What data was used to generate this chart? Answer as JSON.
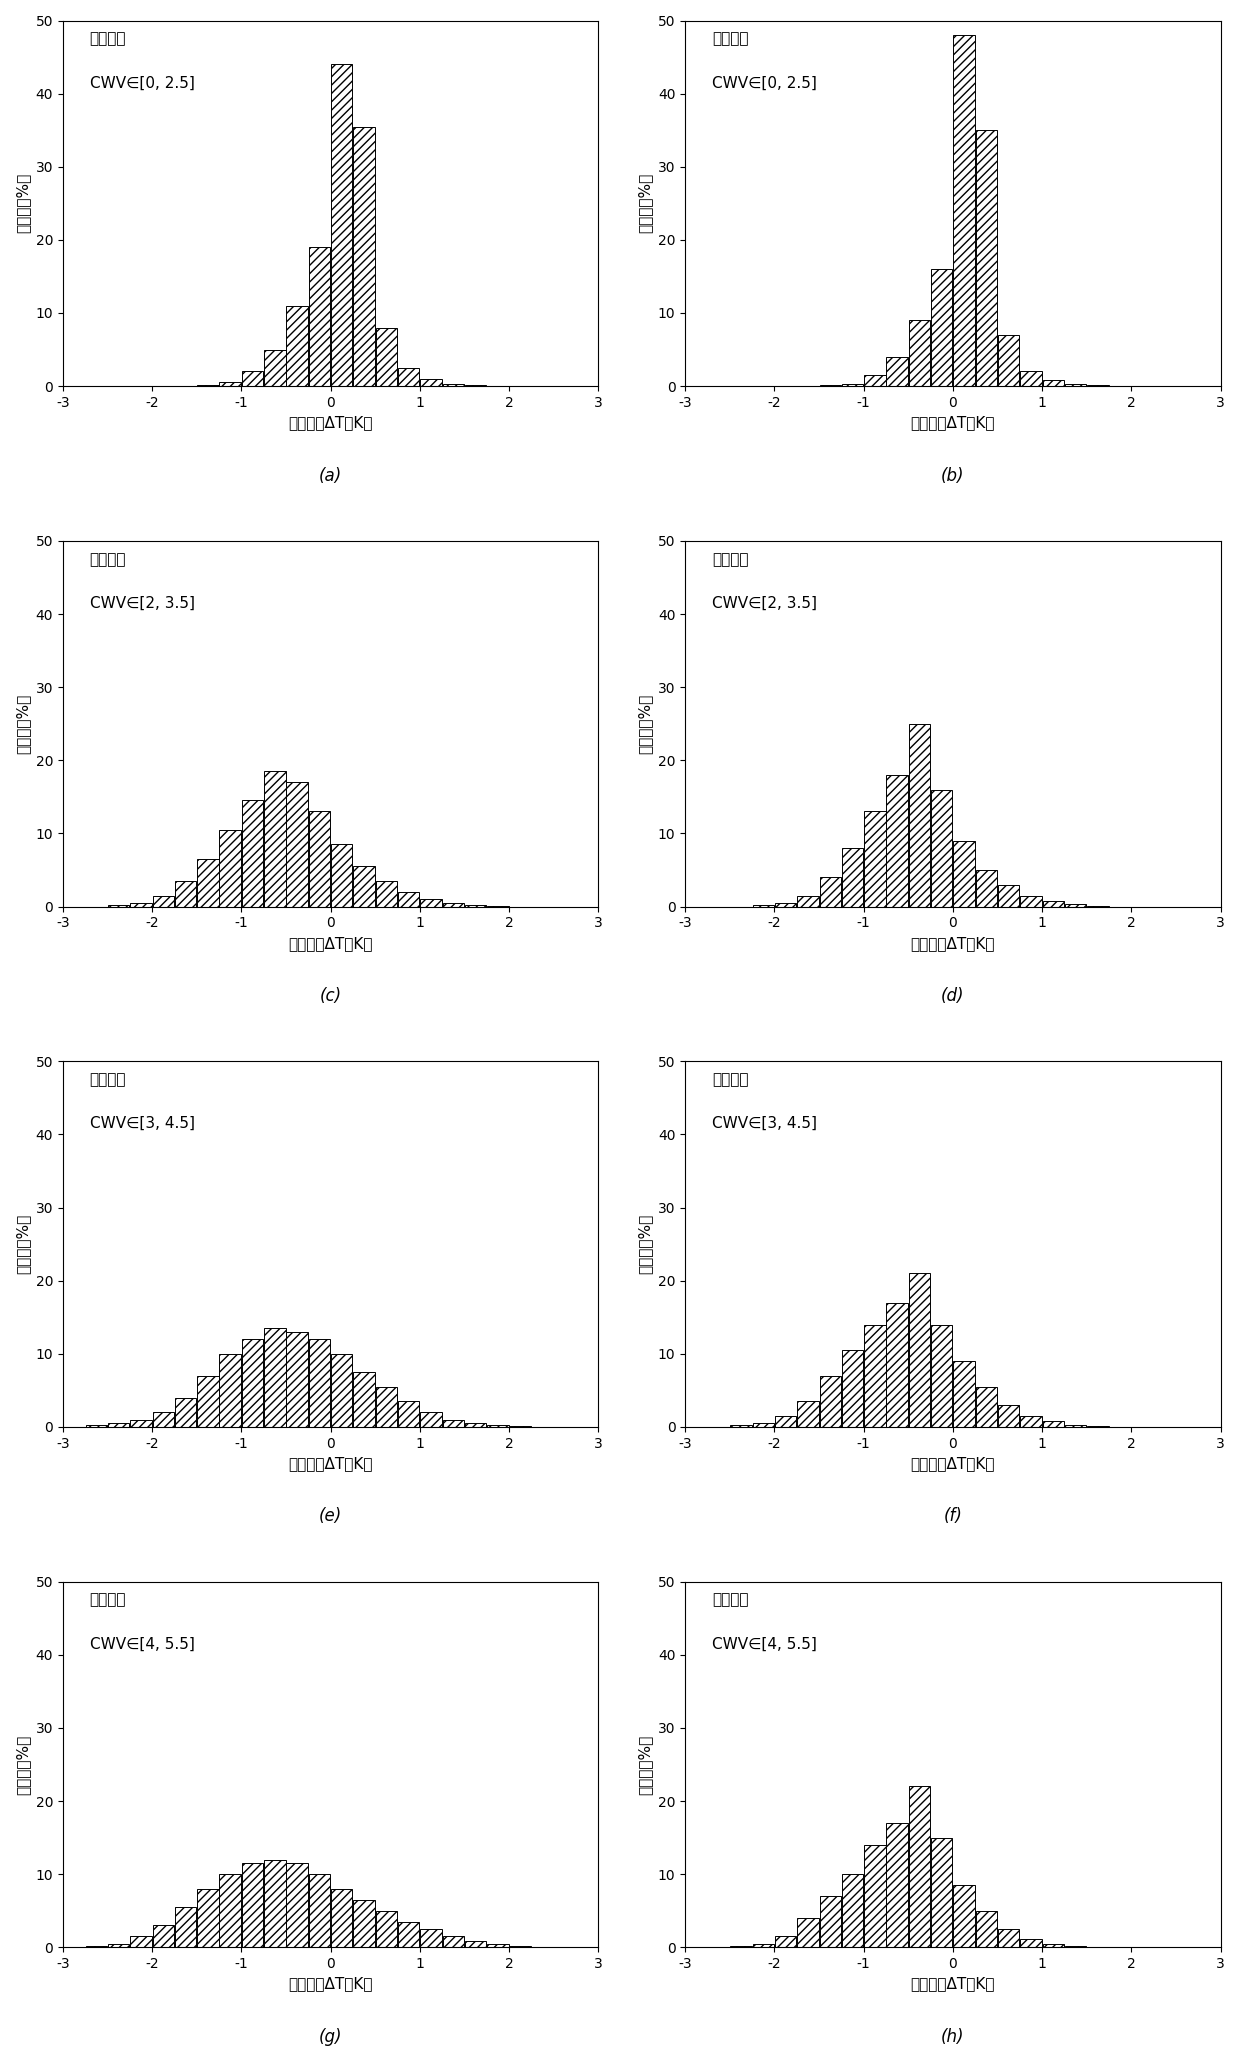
{
  "panels": [
    {
      "label": "(a)",
      "title_line1": "日间算法",
      "title_line2": "CWV∈[0, 2.5]",
      "values": [
        0,
        0,
        0,
        0,
        0,
        0,
        0.2,
        0.5,
        2.0,
        5.0,
        11.0,
        19.0,
        44.0,
        35.5,
        8.0,
        2.5,
        1.0,
        0.3,
        0.1,
        0,
        0,
        0,
        0,
        0
      ]
    },
    {
      "label": "(b)",
      "title_line1": "夜间算法",
      "title_line2": "CWV∈[0, 2.5]",
      "values": [
        0,
        0,
        0,
        0,
        0,
        0,
        0.1,
        0.3,
        1.5,
        4.0,
        9.0,
        16.0,
        48.0,
        35.0,
        7.0,
        2.0,
        0.8,
        0.3,
        0.1,
        0,
        0,
        0,
        0,
        0
      ]
    },
    {
      "label": "(c)",
      "title_line1": "日间算法",
      "title_line2": "CWV∈[2, 3.5]",
      "values": [
        0,
        0,
        0.2,
        0.5,
        1.5,
        3.5,
        6.5,
        10.5,
        14.5,
        18.5,
        17.0,
        13.0,
        8.5,
        5.5,
        3.5,
        2.0,
        1.0,
        0.5,
        0.2,
        0.1,
        0,
        0,
        0,
        0
      ]
    },
    {
      "label": "(d)",
      "title_line1": "夜间算法",
      "title_line2": "CWV∈[2, 3.5]",
      "values": [
        0,
        0,
        0,
        0.2,
        0.5,
        1.5,
        4.0,
        8.0,
        13.0,
        18.0,
        25.0,
        16.0,
        9.0,
        5.0,
        3.0,
        1.5,
        0.7,
        0.3,
        0.1,
        0,
        0,
        0,
        0,
        0
      ]
    },
    {
      "label": "(e)",
      "title_line1": "日间算法",
      "title_line2": "CWV∈[3, 4.5]",
      "values": [
        0,
        0.2,
        0.5,
        1.0,
        2.0,
        4.0,
        7.0,
        10.0,
        12.0,
        13.5,
        13.0,
        12.0,
        10.0,
        7.5,
        5.5,
        3.5,
        2.0,
        1.0,
        0.5,
        0.3,
        0.1,
        0,
        0,
        0
      ]
    },
    {
      "label": "(f)",
      "title_line1": "夜间算法",
      "title_line2": "CWV∈[3, 4.5]",
      "values": [
        0,
        0,
        0.2,
        0.5,
        1.5,
        3.5,
        7.0,
        10.5,
        14.0,
        17.0,
        21.0,
        14.0,
        9.0,
        5.5,
        3.0,
        1.5,
        0.8,
        0.3,
        0.1,
        0,
        0,
        0,
        0,
        0
      ]
    },
    {
      "label": "(g)",
      "title_line1": "日间算法",
      "title_line2": "CWV∈[4, 5.5]",
      "values": [
        0,
        0.2,
        0.5,
        1.5,
        3.0,
        5.5,
        8.0,
        10.0,
        11.5,
        12.0,
        11.5,
        10.0,
        8.0,
        6.5,
        5.0,
        3.5,
        2.5,
        1.5,
        0.8,
        0.4,
        0.2,
        0.1,
        0,
        0
      ]
    },
    {
      "label": "(h)",
      "title_line1": "夜间算法",
      "title_line2": "CWV∈[4, 5.5]",
      "values": [
        0,
        0,
        0.2,
        0.5,
        1.5,
        4.0,
        7.0,
        10.0,
        14.0,
        17.0,
        22.0,
        15.0,
        8.5,
        5.0,
        2.5,
        1.2,
        0.5,
        0.2,
        0.1,
        0,
        0,
        0,
        0,
        0
      ]
    }
  ],
  "bins": [
    -3.0,
    -2.75,
    -2.5,
    -2.25,
    -2.0,
    -1.75,
    -1.5,
    -1.25,
    -1.0,
    -0.75,
    -0.5,
    -0.25,
    0.0,
    0.25,
    0.5,
    0.75,
    1.0,
    1.25,
    1.5,
    1.75,
    2.0,
    2.25,
    2.5,
    2.75,
    3.0
  ],
  "xlim": [
    -3,
    3
  ],
  "ylim": [
    0,
    50
  ],
  "yticks": [
    0,
    10,
    20,
    30,
    40,
    50
  ],
  "xticks": [
    -3,
    -2,
    -1,
    0,
    1,
    2,
    3
  ],
  "xlabel_chinese": "算法残差",
  "xlabel_delta": "ΔT",
  "xlabel_unit": "（K）",
  "ylabel": "百分比（%）",
  "hatch": "////",
  "background_color": "#ffffff",
  "bar_edgecolor": "#000000",
  "figsize": [
    12.4,
    20.56
  ],
  "dpi": 100
}
